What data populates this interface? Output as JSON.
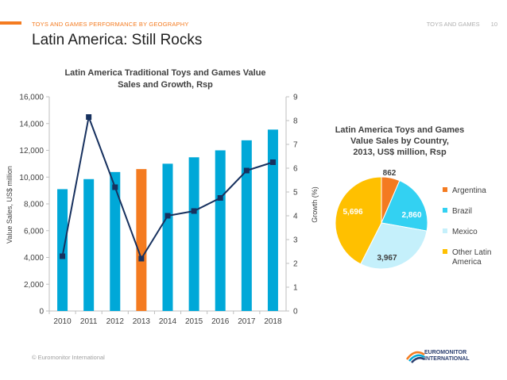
{
  "header": {
    "section_label": "TOYS AND GAMES PERFORMANCE BY GEOGRAPHY",
    "category": "TOYS AND GAMES",
    "page_number": "10",
    "title": "Latin America: Still Rocks"
  },
  "footer": {
    "copyright": "© Euromonitor International",
    "logo_line1": "EUROMONITOR",
    "logo_line2": "INTERNATIONAL"
  },
  "colors": {
    "accent": "#f47b20",
    "bar": "#00a8d8",
    "bar_highlight": "#f47b20",
    "line": "#17315f",
    "pie_argentina": "#f47b20",
    "pie_brazil": "#33d1f2",
    "pie_mexico": "#c5f0fb",
    "pie_other": "#ffc000"
  },
  "chart_data": [
    {
      "type": "bar",
      "title": "Latin America Traditional Toys and Games Value Sales and Growth, Rsp",
      "title_lines": [
        "Latin America Traditional Toys and Games Value",
        "Sales and Growth, Rsp"
      ],
      "categories": [
        "2010",
        "2011",
        "2012",
        "2013",
        "2014",
        "2015",
        "2016",
        "2017",
        "2018"
      ],
      "series": [
        {
          "name": "Value Sales",
          "type": "bar",
          "axis": "left",
          "values": [
            9100,
            9850,
            10380,
            10600,
            11000,
            11480,
            12000,
            12750,
            13550
          ],
          "highlight_index": 3
        },
        {
          "name": "Growth",
          "type": "line",
          "axis": "right",
          "values": [
            2.3,
            8.15,
            5.2,
            2.2,
            4.0,
            4.2,
            4.75,
            5.9,
            6.25
          ]
        }
      ],
      "ylabel": "Value Sales, US$ million",
      "ylabel2": "Growth (%)",
      "ylim": [
        0,
        16000
      ],
      "yticks": [
        "0",
        "2,000",
        "4,000",
        "6,000",
        "8,000",
        "10,000",
        "12,000",
        "14,000",
        "16,000"
      ],
      "ylim2": [
        0,
        9
      ],
      "yticks2": [
        "0",
        "1",
        "2",
        "3",
        "4",
        "5",
        "6",
        "7",
        "8",
        "9"
      ],
      "grid": false
    },
    {
      "type": "pie",
      "title": "Latin America Toys and Games Value Sales by Country, 2013, US$ million, Rsp",
      "title_lines": [
        "Latin America Toys and Games",
        "Value Sales by Country,",
        "2013, US$ million, Rsp"
      ],
      "labels": [
        "Argentina",
        "Brazil",
        "Mexico",
        "Other Latin America"
      ],
      "values": [
        862,
        2860,
        3967,
        5696
      ],
      "value_labels": [
        "862",
        "2,860",
        "3,967",
        "5,696"
      ],
      "legend": [
        "Argentina",
        "Brazil",
        "Mexico",
        "Other Latin",
        "America"
      ],
      "legend_placement": "right"
    }
  ]
}
